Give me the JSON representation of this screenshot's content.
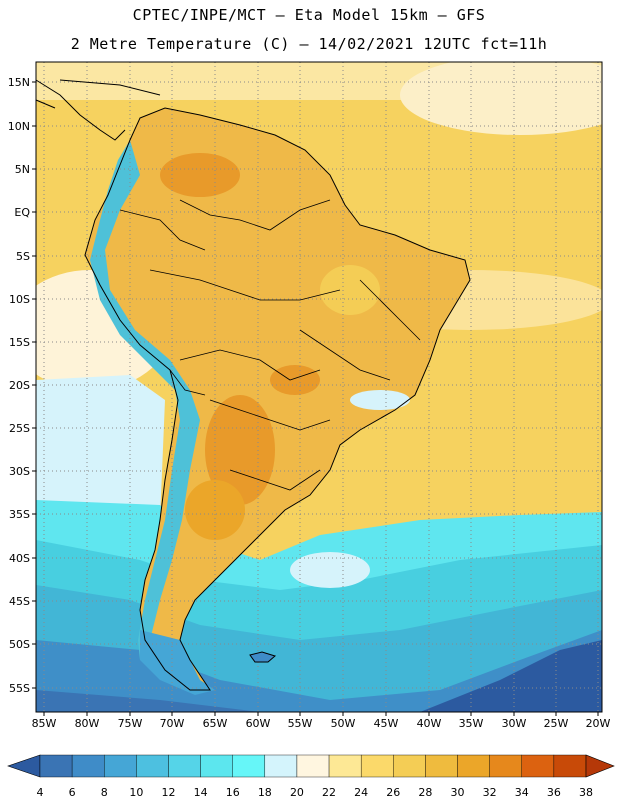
{
  "header": {
    "line1": "CPTEC/INPE/MCT –  Eta Model 15km – GFS",
    "line2": "2 Metre Temperature (C) – 14/02/2021 12UTC fct=11h"
  },
  "map": {
    "lat_labels": [
      "15N",
      "10N",
      "5N",
      "EQ",
      "5S",
      "10S",
      "15S",
      "20S",
      "25S",
      "30S",
      "35S",
      "40S",
      "45S",
      "50S",
      "55S"
    ],
    "lon_labels": [
      "85W",
      "80W",
      "75W",
      "70W",
      "65W",
      "60W",
      "55W",
      "50W",
      "45W",
      "40W",
      "35W",
      "30W",
      "25W",
      "20W"
    ],
    "grid": true
  },
  "colorbar": {
    "levels": [
      "4",
      "6",
      "8",
      "10",
      "12",
      "14",
      "16",
      "18",
      "20",
      "22",
      "24",
      "26",
      "28",
      "30",
      "32",
      "34",
      "36",
      "38"
    ],
    "colors": [
      "#2c5aa0",
      "#3a74b4",
      "#3f8cc8",
      "#45a6d6",
      "#4dc0e0",
      "#55d4e8",
      "#5ce6ee",
      "#66f6f8",
      "#d4f4fc",
      "#fff6e0",
      "#fde895",
      "#fbd96a",
      "#f4cd55",
      "#efbb3e",
      "#eba629",
      "#e6881c",
      "#dc6210",
      "#c84a08",
      "#b53808"
    ]
  },
  "colors": {
    "warm_ocean": "#f7d36a",
    "warm_ocean_light": "#fbe4a0",
    "land_warm": "#efb948",
    "land_hot": "#e89a2a",
    "andes_cold": "#4ec1d8",
    "southern_ocean_deep": "#2c5aa0"
  }
}
